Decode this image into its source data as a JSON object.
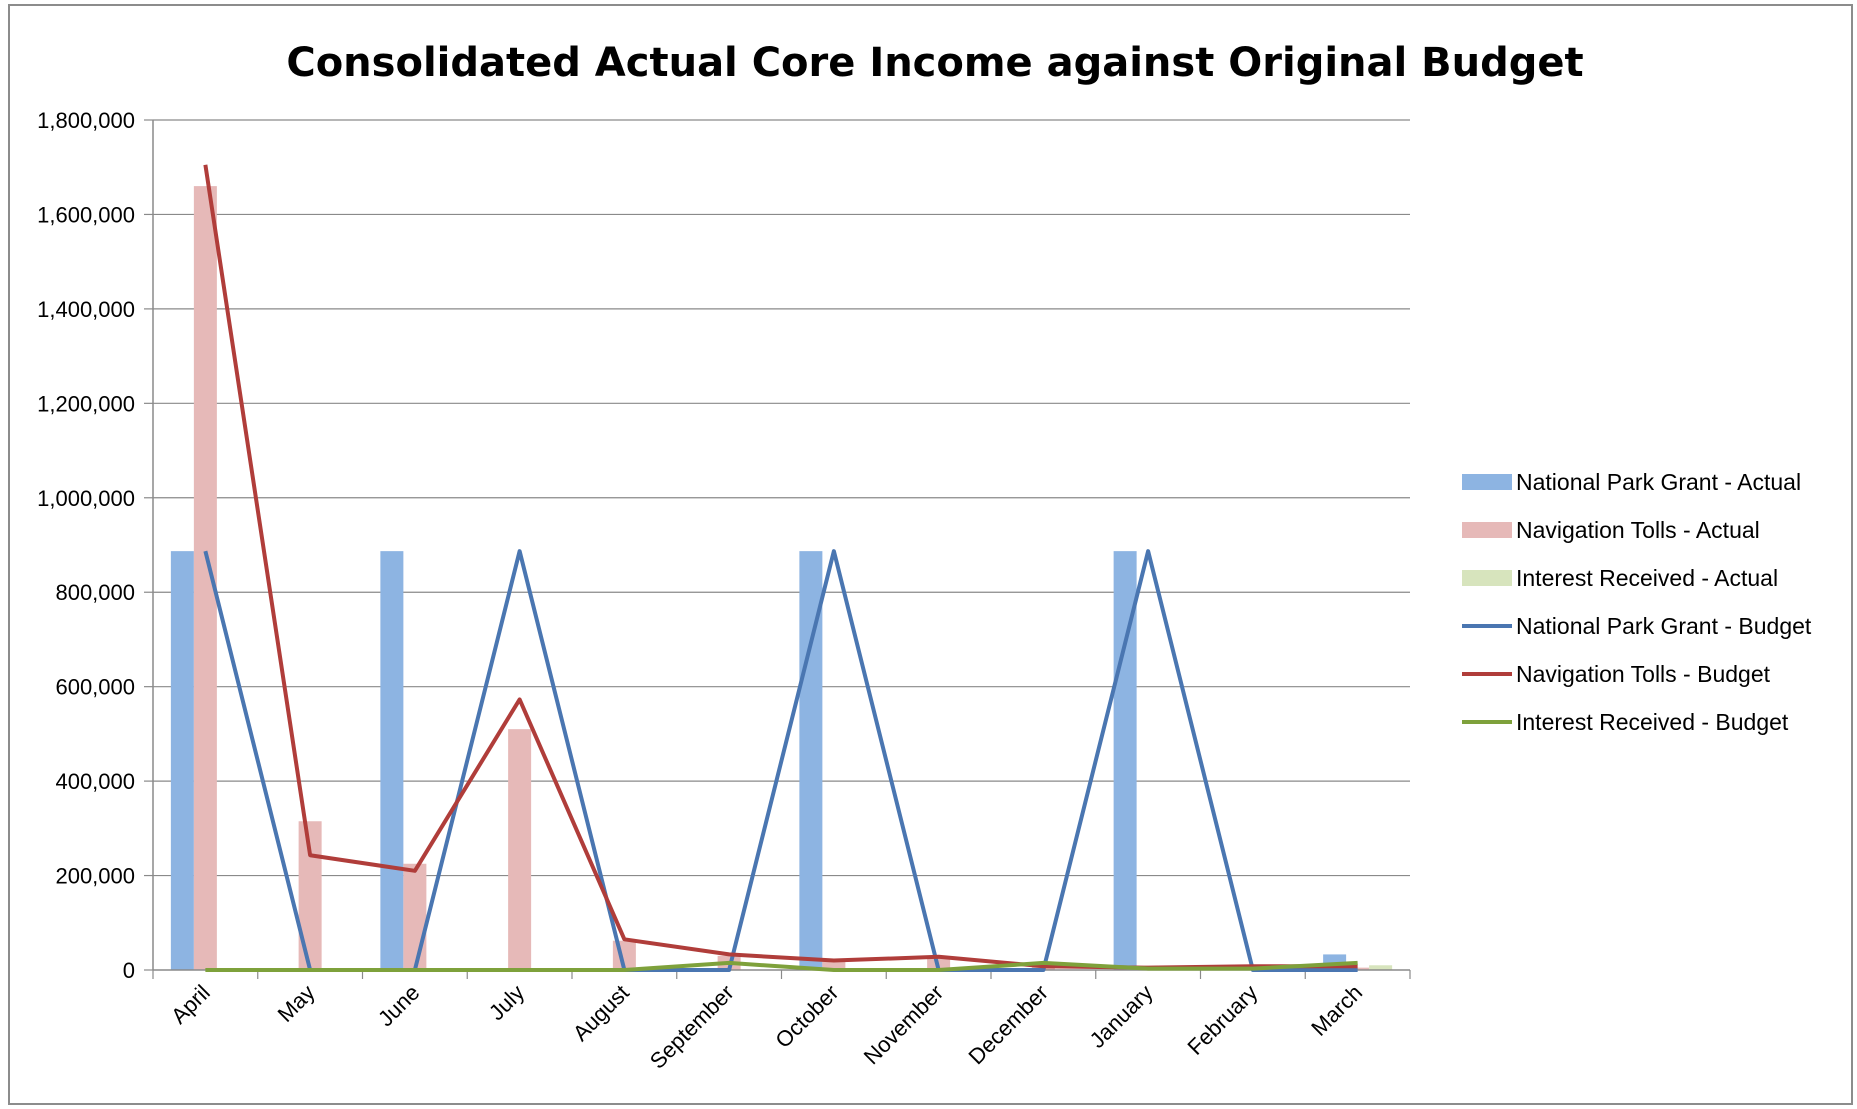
{
  "chart_data": {
    "type": "bar",
    "title": "Consolidated Actual Core Income against Original Budget",
    "categories": [
      "April",
      "May",
      "June",
      "July",
      "August",
      "September",
      "October",
      "November",
      "December",
      "January",
      "February",
      "March"
    ],
    "ylim": [
      0,
      1800000
    ],
    "yticks": [
      0,
      200000,
      400000,
      600000,
      800000,
      1000000,
      1200000,
      1400000,
      1600000,
      1800000
    ],
    "ytick_labels": [
      "0",
      "200,000",
      "400,000",
      "600,000",
      "800,000",
      "1,000,000",
      "1,200,000",
      "1,400,000",
      "1,600,000",
      "1,800,000"
    ],
    "grid": true,
    "legend_position": "right",
    "bar_series": [
      {
        "name": "National Park Grant - Actual",
        "color": "#8db4e2",
        "values": [
          887000,
          0,
          887000,
          0,
          0,
          0,
          887000,
          0,
          0,
          887000,
          0,
          33000
        ]
      },
      {
        "name": "Navigation Tolls - Actual",
        "color": "#e6b9b8",
        "values": [
          1660000,
          315000,
          225000,
          510000,
          62000,
          30000,
          20000,
          25000,
          10000,
          5000,
          5000,
          5000
        ]
      },
      {
        "name": "Interest Received - Actual",
        "color": "#d7e4bd",
        "values": [
          0,
          0,
          0,
          0,
          0,
          0,
          0,
          0,
          0,
          0,
          0,
          10000
        ]
      }
    ],
    "line_series": [
      {
        "name": "National Park Grant - Budget",
        "color": "#4a76b1",
        "values": [
          887000,
          0,
          0,
          887000,
          0,
          0,
          887000,
          0,
          0,
          887000,
          0,
          0
        ]
      },
      {
        "name": "Navigation Tolls - Budget",
        "color": "#b03d3a",
        "values": [
          1705000,
          243000,
          210000,
          573000,
          65000,
          33000,
          20000,
          28000,
          8000,
          5000,
          8000,
          8000
        ]
      },
      {
        "name": "Interest Received - Budget",
        "color": "#7ea13b",
        "values": [
          0,
          0,
          0,
          0,
          0,
          15000,
          0,
          0,
          15000,
          3000,
          3000,
          15000
        ]
      }
    ]
  }
}
